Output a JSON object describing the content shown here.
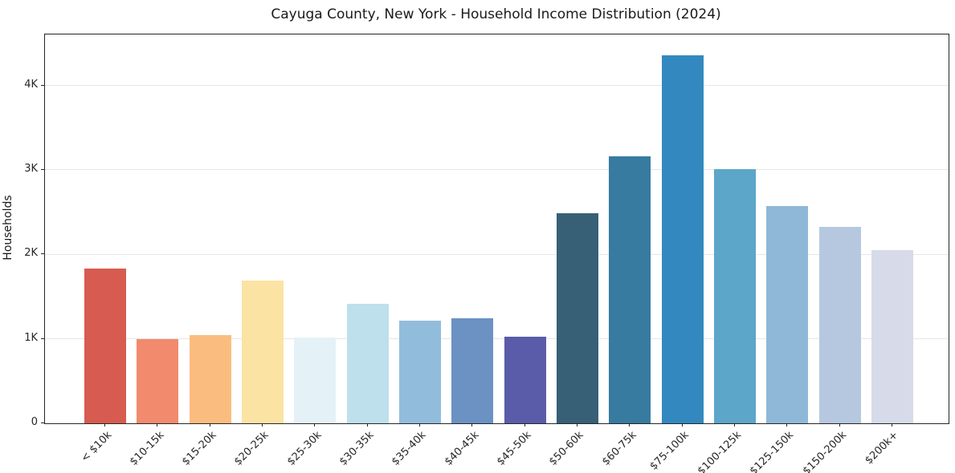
{
  "chart_data": {
    "type": "bar",
    "title": "Cayuga County, New York - Household Income Distribution (2024)",
    "ylabel": "Households",
    "xlabel": "",
    "categories": [
      "< $10k",
      "$10-15k",
      "$15-20k",
      "$20-25k",
      "$25-30k",
      "$30-35k",
      "$35-40k",
      "$40-45k",
      "$45-50k",
      "$50-60k",
      "$60-75k",
      "$75-100k",
      "$100-125k",
      "$125-150k",
      "$150-200k",
      "$200k+"
    ],
    "values": [
      1830,
      1000,
      1050,
      1690,
      1020,
      1420,
      1215,
      1245,
      1030,
      2490,
      3165,
      4360,
      3010,
      2575,
      2330,
      2055
    ],
    "bar_colors": [
      "#d75b50",
      "#f28a6d",
      "#fbbd7f",
      "#fbe3a3",
      "#e4f2f7",
      "#bde0ec",
      "#92bcdc",
      "#6b92c3",
      "#5a5ca9",
      "#376076",
      "#377ba1",
      "#3389bf",
      "#5ba6c9",
      "#8fb8d8",
      "#b6c8e0",
      "#d7dae8"
    ],
    "yticks": [
      {
        "value": 0,
        "label": "0"
      },
      {
        "value": 1000,
        "label": "1K"
      },
      {
        "value": 2000,
        "label": "2K"
      },
      {
        "value": 3000,
        "label": "3K"
      },
      {
        "value": 4000,
        "label": "4K"
      }
    ],
    "ylim": [
      0,
      4608
    ],
    "grid": "horizontal",
    "grid_color": "#e6e6e6",
    "axis_color": "#262626",
    "legend": "none"
  }
}
